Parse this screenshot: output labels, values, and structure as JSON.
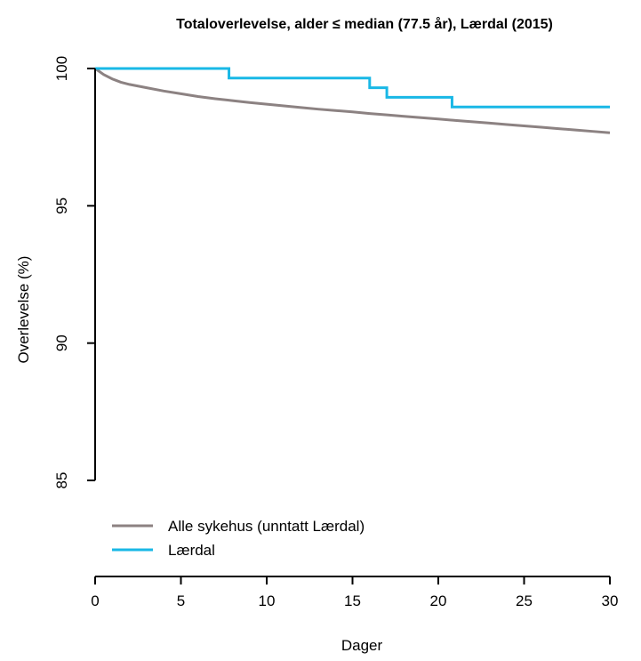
{
  "chart_data": {
    "type": "line",
    "title": "Totaloverlevelse, alder ≤ median (77.5 år), Lærdal (2015)",
    "xlabel": "Dager",
    "ylabel": "Overlevelse (%)",
    "xlim": [
      0,
      30
    ],
    "ylim": [
      85,
      100
    ],
    "xticks": [
      0,
      5,
      10,
      15,
      20,
      25,
      30
    ],
    "yticks": [
      85,
      90,
      95,
      100
    ],
    "grid": false,
    "legend_position": "bottom-left",
    "series": [
      {
        "name": "Alle sykehus (unntatt Lærdal)",
        "color": "#8c8282",
        "step": false,
        "x": [
          0,
          0.5,
          1,
          1.5,
          2,
          3,
          4,
          5,
          6,
          7,
          8,
          9,
          10,
          11,
          12,
          13,
          14,
          15,
          16,
          17,
          18,
          19,
          20,
          21,
          22,
          23,
          24,
          25,
          26,
          27,
          28,
          29,
          30
        ],
        "y": [
          100,
          99.78,
          99.62,
          99.5,
          99.42,
          99.3,
          99.18,
          99.08,
          98.98,
          98.9,
          98.83,
          98.76,
          98.7,
          98.64,
          98.58,
          98.52,
          98.47,
          98.42,
          98.36,
          98.31,
          98.26,
          98.21,
          98.16,
          98.11,
          98.06,
          98.01,
          97.96,
          97.91,
          97.86,
          97.81,
          97.76,
          97.71,
          97.66
        ]
      },
      {
        "name": "Lærdal",
        "color": "#19b8e6",
        "step": true,
        "x": [
          0,
          7.8,
          16,
          17,
          20.8,
          30
        ],
        "y": [
          100,
          99.65,
          99.3,
          98.95,
          98.6,
          98.6
        ]
      }
    ]
  }
}
